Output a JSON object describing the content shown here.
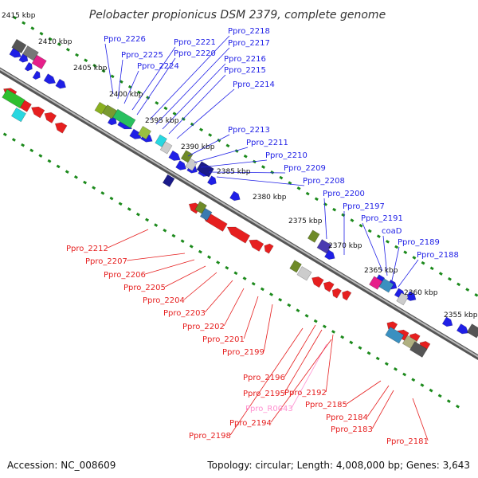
{
  "title": "Pelobacter propionicus DSM 2379, complete genome",
  "footer": {
    "accession": "Accession: NC_008609",
    "topology": "Topology: circular; Length: 4,008,000 bp; Genes: 3,643"
  },
  "colors": {
    "forward": "#1f1fe6",
    "reverse": "#e61f1f",
    "rna": "#ff8fd0",
    "backbone": "#888888",
    "tick": "#1c8a1c"
  },
  "kbp_markers": [
    "2415 kbp",
    "2410 kbp",
    "2405 kbp",
    "2400 kbp",
    "2395 kbp",
    "2390 kbp",
    "2385 kbp",
    "2380 kbp",
    "2375 kbp",
    "2370 kbp",
    "2365 kbp",
    "2360 kbp",
    "2355 kbp"
  ],
  "genes_forward": [
    "Ppro_2226",
    "Ppro_2225",
    "Ppro_2224",
    "Ppro_2221",
    "Ppro_2220",
    "Ppro_2218",
    "Ppro_2217",
    "Ppro_2216",
    "Ppro_2215",
    "Ppro_2214",
    "Ppro_2213",
    "Ppro_2211",
    "Ppro_2210",
    "Ppro_2209",
    "Ppro_2208",
    "Ppro_2200",
    "Ppro_2197",
    "Ppro_2191",
    "coaD",
    "Ppro_2189",
    "Ppro_2188"
  ],
  "genes_reverse": [
    "Ppro_2212",
    "Ppro_2207",
    "Ppro_2206",
    "Ppro_2205",
    "Ppro_2204",
    "Ppro_2203",
    "Ppro_2202",
    "Ppro_2201",
    "Ppro_2199",
    "Ppro_2196",
    "Ppro_2195",
    "Ppro_2192",
    "Ppro_R0043",
    "Ppro_2194",
    "Ppro_2185",
    "Ppro_2184",
    "Ppro_2198",
    "Ppro_2183",
    "Ppro_2181"
  ]
}
